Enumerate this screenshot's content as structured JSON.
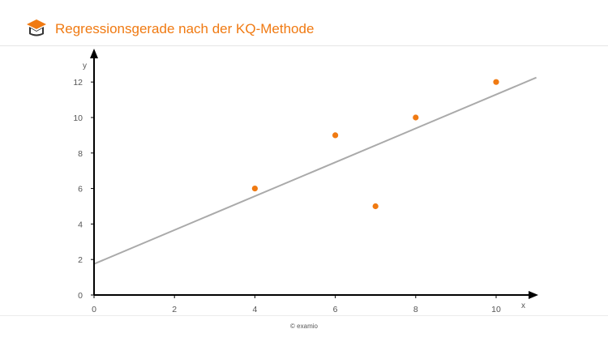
{
  "header": {
    "title": "Regressionsgerade nach der KQ-Methode",
    "logo_icon": "examio-book-logo-icon"
  },
  "footer": {
    "copyright": "© examio"
  },
  "colors": {
    "accent": "#f07a12",
    "regression_line": "#aaaaaa",
    "axis": "#000000"
  },
  "chart_data": {
    "type": "scatter",
    "title": "",
    "xlabel": "x",
    "ylabel": "y",
    "xlim": [
      0,
      11
    ],
    "ylim": [
      0,
      13
    ],
    "xticks": [
      0,
      2,
      4,
      6,
      8,
      10
    ],
    "yticks": [
      0,
      2,
      4,
      6,
      8,
      10,
      12
    ],
    "grid": false,
    "points": [
      {
        "x": 4,
        "y": 6
      },
      {
        "x": 6,
        "y": 9
      },
      {
        "x": 7,
        "y": 5
      },
      {
        "x": 8,
        "y": 10
      },
      {
        "x": 10,
        "y": 12
      }
    ],
    "regression_line": {
      "x": [
        0,
        11
      ],
      "y": [
        1.75,
        12.25
      ]
    }
  }
}
